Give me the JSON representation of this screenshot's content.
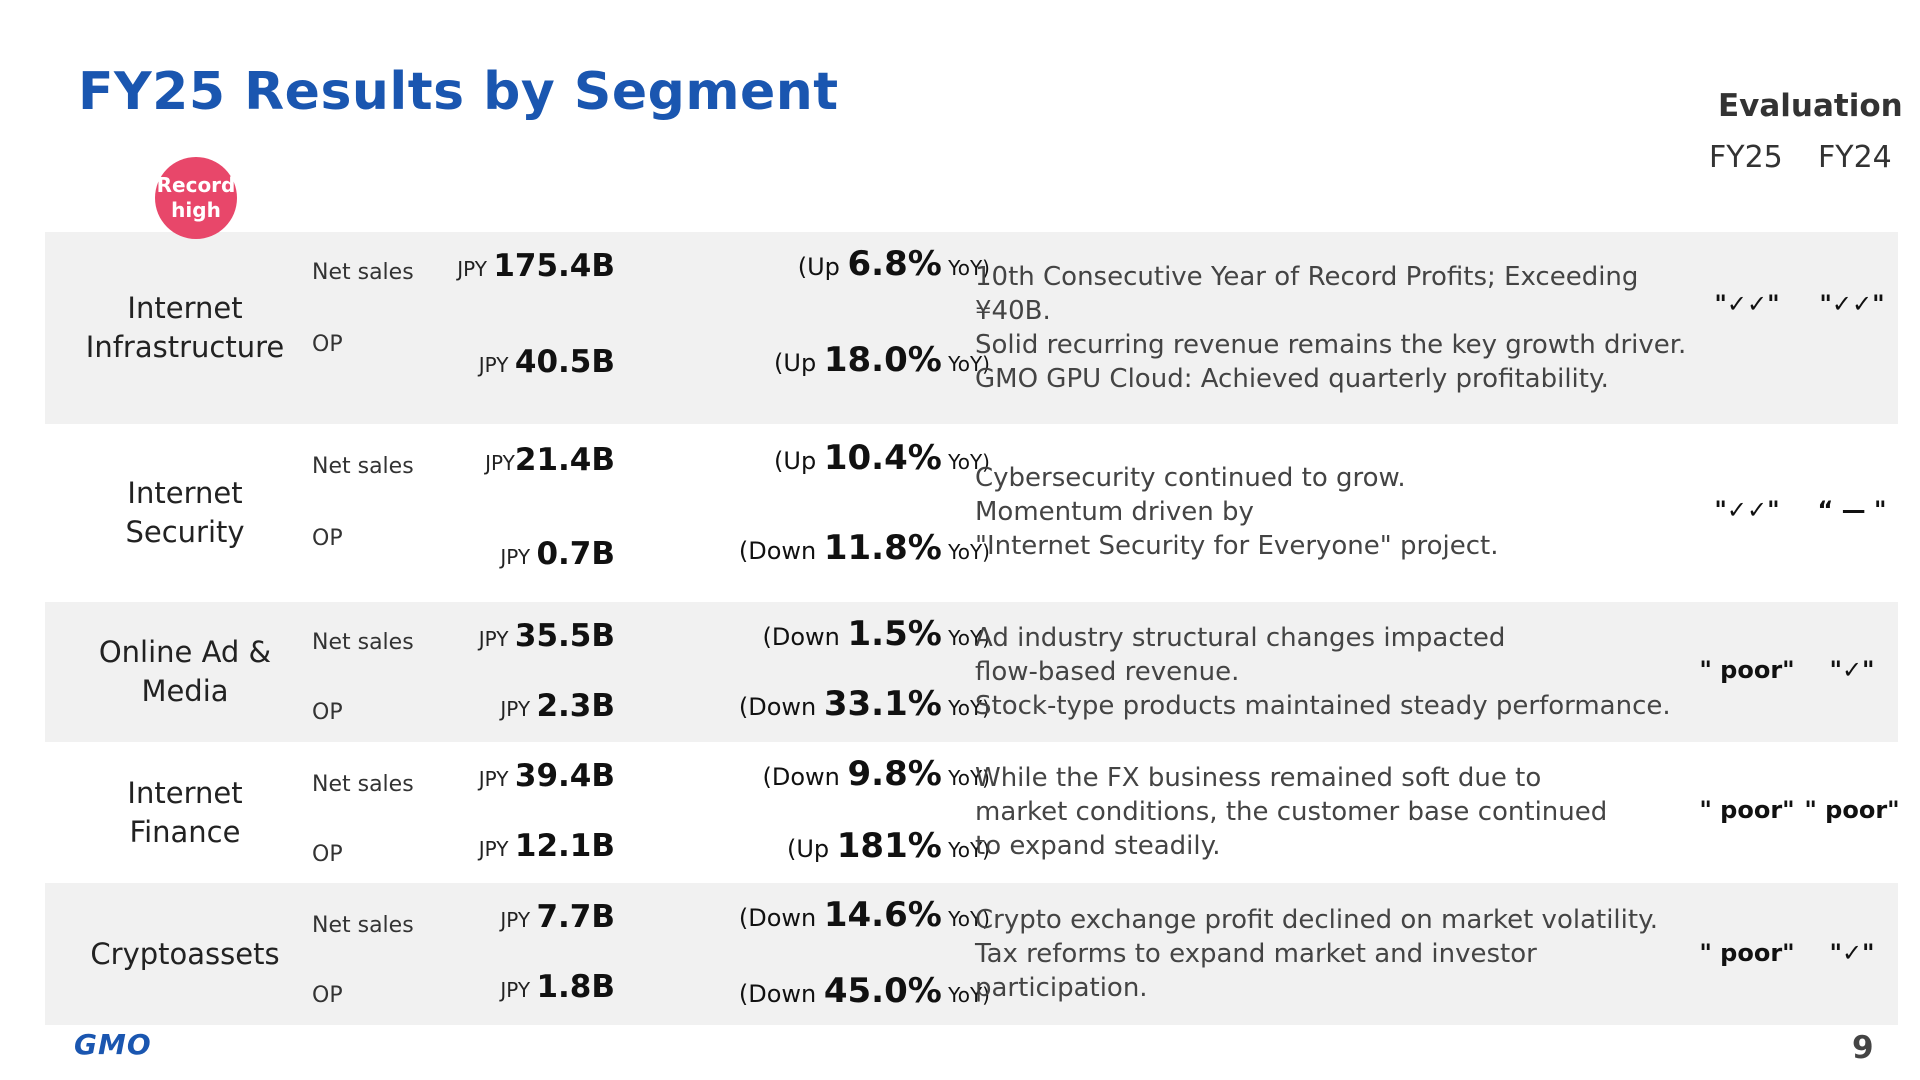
{
  "title": "FY25 Results by Segment",
  "evaluation": {
    "heading": "Evaluation",
    "fy25": "FY25",
    "fy24": "FY24"
  },
  "badge": {
    "line1": "Record",
    "line2": "high"
  },
  "segments": [
    {
      "name_lines": [
        "Internet",
        "Infrastructure"
      ],
      "net_sales": {
        "label": "Net sales",
        "currency": "JPY ",
        "amount": "175.4B",
        "yoy_open": "(Up ",
        "yoy_pct": "6.8%",
        "yoy_close": " YoY)"
      },
      "op": {
        "label": "OP",
        "currency": "JPY ",
        "amount": "40.5B",
        "yoy_open": "(Up ",
        "yoy_pct": "18.0%",
        "yoy_close": " YoY)"
      },
      "comment_lines": [
        "10th Consecutive Year of Record Profits; Exceeding ¥40B.",
        "Solid recurring revenue remains the key growth driver.",
        "GMO GPU Cloud: Achieved quarterly profitability."
      ],
      "eval_fy25": "\"✓✓\"",
      "eval_fy24": "\"✓✓\""
    },
    {
      "name_lines": [
        "Internet",
        "Security"
      ],
      "net_sales": {
        "label": "Net sales",
        "currency": "JPY",
        "amount": "21.4B",
        "yoy_open": "(Up ",
        "yoy_pct": "10.4%",
        "yoy_close": " YoY)"
      },
      "op": {
        "label": "OP",
        "currency": "JPY ",
        "amount": "0.7B",
        "yoy_open": "(Down ",
        "yoy_pct": "11.8%",
        "yoy_close": " YoY)"
      },
      "comment_lines": [
        "Cybersecurity continued to grow.",
        "Momentum driven by",
        "\"Internet Security for Everyone\" project."
      ],
      "eval_fy25": "\"✓✓\"",
      "eval_fy24": "“ — \""
    },
    {
      "name_lines": [
        "Online Ad &",
        "Media"
      ],
      "net_sales": {
        "label": "Net sales",
        "currency": "JPY ",
        "amount": "35.5B",
        "yoy_open": "(Down ",
        "yoy_pct": "1.5%",
        "yoy_close": " YoY)"
      },
      "op": {
        "label": "OP",
        "currency": "JPY ",
        "amount": "2.3B",
        "yoy_open": "(Down ",
        "yoy_pct": "33.1%",
        "yoy_close": " YoY)"
      },
      "comment_lines": [
        "Ad industry structural changes impacted",
        "flow-based revenue.",
        "Stock-type products maintained steady performance."
      ],
      "eval_fy25": "\" poor\"",
      "eval_fy24": "\"✓\""
    },
    {
      "name_lines": [
        "Internet",
        "Finance"
      ],
      "net_sales": {
        "label": "Net sales",
        "currency": "JPY ",
        "amount": "39.4B",
        "yoy_open": "(Down ",
        "yoy_pct": "9.8%",
        "yoy_close": " YoY)"
      },
      "op": {
        "label": "OP",
        "currency": "JPY ",
        "amount": "12.1B",
        "yoy_open": "(Up ",
        "yoy_pct": "181%",
        "yoy_close": " YoY)"
      },
      "comment_lines": [
        "While the FX business remained soft due to",
        "market conditions, the customer base continued",
        "to expand steadily."
      ],
      "eval_fy25": "\" poor\"",
      "eval_fy24": "\" poor\""
    },
    {
      "name_lines": [
        "Cryptoassets"
      ],
      "net_sales": {
        "label": "Net sales",
        "currency": "JPY ",
        "amount": "7.7B",
        "yoy_open": "(Down ",
        "yoy_pct": "14.6%",
        "yoy_close": " YoY)"
      },
      "op": {
        "label": "OP",
        "currency": "JPY ",
        "amount": "1.8B",
        "yoy_open": "(Down ",
        "yoy_pct": "45.0%",
        "yoy_close": " YoY)"
      },
      "comment_lines": [
        "Crypto exchange profit declined on market volatility.",
        "Tax reforms to expand market and investor participation."
      ],
      "eval_fy25": "\" poor\"",
      "eval_fy24": "\"✓\""
    }
  ],
  "footer": {
    "logo": "GMO",
    "page_number": "9"
  }
}
